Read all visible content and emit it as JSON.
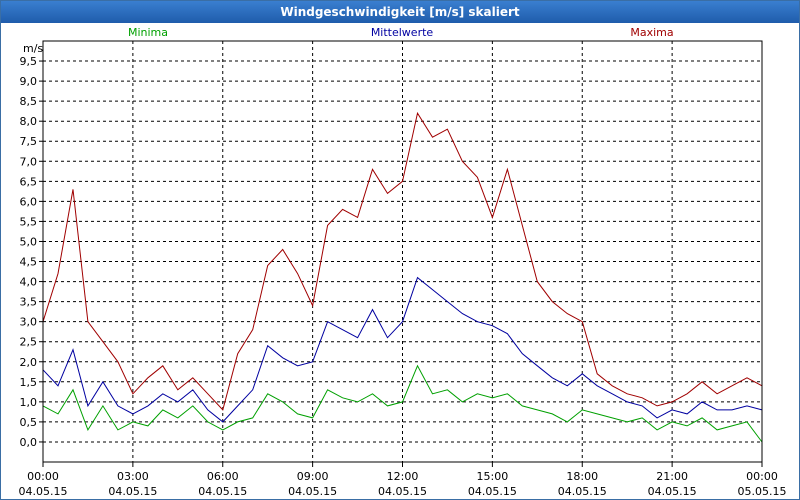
{
  "window": {
    "title": "Windgeschwindigkeit [m/s] skaliert"
  },
  "colors": {
    "min": "#00a000",
    "mean": "#0000a0",
    "max": "#a00000",
    "grid": "#000000",
    "titlebar": "#1f5cab"
  },
  "chart_data": {
    "type": "line",
    "title": "Windgeschwindigkeit [m/s] skaliert",
    "ylabel": "m/s",
    "xlabel": "",
    "ylim": [
      -0.5,
      10
    ],
    "xlim": [
      0,
      24
    ],
    "yticks": [
      0,
      0.5,
      1,
      1.5,
      2,
      2.5,
      3,
      3.5,
      4,
      4.5,
      5,
      5.5,
      6,
      6.5,
      7,
      7.5,
      8,
      8.5,
      9,
      9.5
    ],
    "ytick_labels": [
      "0,0",
      "0,5",
      "1,0",
      "1,5",
      "2,0",
      "2,5",
      "3,0",
      "3,5",
      "4,0",
      "4,5",
      "5,0",
      "5,5",
      "6,0",
      "6,5",
      "7,0",
      "7,5",
      "8,0",
      "8,5",
      "9,0",
      "9,5"
    ],
    "xticks": [
      {
        "x": 0,
        "time": "00:00",
        "date": "04.05.15"
      },
      {
        "x": 3,
        "time": "03:00",
        "date": "04.05.15"
      },
      {
        "x": 6,
        "time": "06:00",
        "date": "04.05.15"
      },
      {
        "x": 9,
        "time": "09:00",
        "date": "04.05.15"
      },
      {
        "x": 12,
        "time": "12:00",
        "date": "04.05.15"
      },
      {
        "x": 15,
        "time": "15:00",
        "date": "04.05.15"
      },
      {
        "x": 18,
        "time": "18:00",
        "date": "04.05.15"
      },
      {
        "x": 21,
        "time": "21:00",
        "date": "04.05.15"
      },
      {
        "x": 24,
        "time": "00:00",
        "date": "05.05.15"
      }
    ],
    "grid": true,
    "legend": "top",
    "x": [
      0,
      0.5,
      1,
      1.5,
      2,
      2.5,
      3,
      3.5,
      4,
      4.5,
      5,
      5.5,
      6,
      6.5,
      7,
      7.5,
      8,
      8.5,
      9,
      9.5,
      10,
      10.5,
      11,
      11.5,
      12,
      12.5,
      13,
      13.5,
      14,
      14.5,
      15,
      15.5,
      16,
      16.5,
      17,
      17.5,
      18,
      18.5,
      19,
      19.5,
      20,
      20.5,
      21,
      21.5,
      22,
      22.5,
      23,
      23.5,
      24
    ],
    "series": [
      {
        "name": "Minima",
        "color": "#00a000",
        "values": [
          0.9,
          0.7,
          1.3,
          0.3,
          0.9,
          0.3,
          0.5,
          0.4,
          0.8,
          0.6,
          0.9,
          0.5,
          0.3,
          0.5,
          0.6,
          1.2,
          1.0,
          0.7,
          0.6,
          1.3,
          1.1,
          1.0,
          1.2,
          0.9,
          1.0,
          1.9,
          1.2,
          1.3,
          1.0,
          1.2,
          1.1,
          1.2,
          0.9,
          0.8,
          0.7,
          0.5,
          0.8,
          0.7,
          0.6,
          0.5,
          0.6,
          0.3,
          0.5,
          0.4,
          0.6,
          0.3,
          0.4,
          0.5,
          0.0
        ]
      },
      {
        "name": "Mittelwerte",
        "color": "#0000a0",
        "values": [
          1.8,
          1.4,
          2.3,
          0.9,
          1.5,
          0.9,
          0.7,
          0.9,
          1.2,
          1.0,
          1.3,
          0.8,
          0.5,
          0.9,
          1.3,
          2.4,
          2.1,
          1.9,
          2.0,
          3.0,
          2.8,
          2.6,
          3.3,
          2.6,
          3.0,
          4.1,
          3.8,
          3.5,
          3.2,
          3.0,
          2.9,
          2.7,
          2.2,
          1.9,
          1.6,
          1.4,
          1.7,
          1.4,
          1.2,
          1.0,
          0.9,
          0.6,
          0.8,
          0.7,
          1.0,
          0.8,
          0.8,
          0.9,
          0.8
        ]
      },
      {
        "name": "Maxima",
        "color": "#a00000",
        "values": [
          3.0,
          4.2,
          6.3,
          3.0,
          2.5,
          2.0,
          1.2,
          1.6,
          1.9,
          1.3,
          1.6,
          1.2,
          0.8,
          2.2,
          2.8,
          4.4,
          4.8,
          4.2,
          3.4,
          5.4,
          5.8,
          5.6,
          6.8,
          6.2,
          6.5,
          8.2,
          7.6,
          7.8,
          7.0,
          6.6,
          5.6,
          6.8,
          5.4,
          4.0,
          3.5,
          3.2,
          3.0,
          1.7,
          1.4,
          1.2,
          1.1,
          0.9,
          1.0,
          1.2,
          1.5,
          1.2,
          1.4,
          1.6,
          1.4
        ]
      }
    ]
  }
}
